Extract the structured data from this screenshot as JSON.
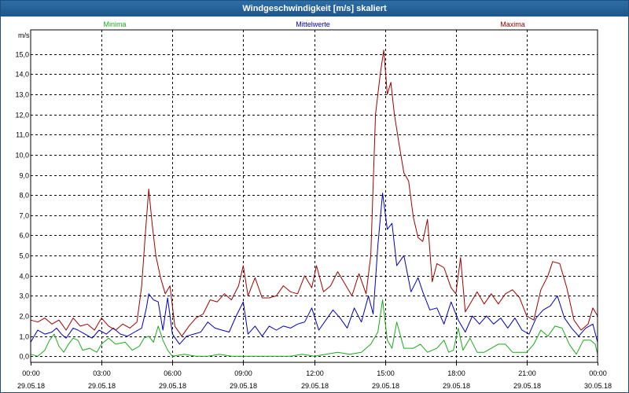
{
  "window": {
    "title": "Windgeschwindigkeit [m/s] skaliert"
  },
  "colors": {
    "min": "#1aaa1a",
    "mean": "#0000c0",
    "max": "#a00000",
    "grid": "#000000"
  },
  "chart_data": {
    "type": "line",
    "title": "Windgeschwindigkeit [m/s] skaliert",
    "ylabel": "m/s",
    "ylim": [
      -0.3,
      16.2
    ],
    "yticks": [
      0,
      1,
      2,
      3,
      4,
      5,
      6,
      7,
      8,
      9,
      10,
      11,
      12,
      13,
      14,
      15
    ],
    "ytick_labels": [
      "0,0",
      "1,0",
      "2,0",
      "3,0",
      "4,0",
      "5,0",
      "6,0",
      "7,0",
      "8,0",
      "9,0",
      "10,0",
      "11,0",
      "12,0",
      "13,0",
      "14,0",
      "15,0"
    ],
    "xlim": [
      0,
      24
    ],
    "x_ticks": [
      {
        "hour": 0,
        "time": "00:00",
        "date": "29.05.18"
      },
      {
        "hour": 3,
        "time": "03:00",
        "date": "29.05.18"
      },
      {
        "hour": 6,
        "time": "06:00",
        "date": "29.05.18"
      },
      {
        "hour": 9,
        "time": "09:00",
        "date": "29.05.18"
      },
      {
        "hour": 12,
        "time": "12:00",
        "date": "29.05.18"
      },
      {
        "hour": 15,
        "time": "15:00",
        "date": "29.05.18"
      },
      {
        "hour": 18,
        "time": "18:00",
        "date": "29.05.18"
      },
      {
        "hour": 21,
        "time": "21:00",
        "date": "29.05.18"
      },
      {
        "hour": 24,
        "time": "00:00",
        "date": "30.05.18"
      }
    ],
    "legend": [
      "Minima",
      "Mittelwerte",
      "Maxima"
    ],
    "grid": true,
    "series": [
      {
        "name": "Minima",
        "color": "#1aaa1a",
        "points": [
          [
            0,
            0.1
          ],
          [
            0.3,
            0
          ],
          [
            0.6,
            0.3
          ],
          [
            0.8,
            0.8
          ],
          [
            1.0,
            1.1
          ],
          [
            1.2,
            0.5
          ],
          [
            1.4,
            0.2
          ],
          [
            1.6,
            0.6
          ],
          [
            1.8,
            0.9
          ],
          [
            2.0,
            0.8
          ],
          [
            2.2,
            0.3
          ],
          [
            2.5,
            0.4
          ],
          [
            2.8,
            0.2
          ],
          [
            3.0,
            0.6
          ],
          [
            3.3,
            0.9
          ],
          [
            3.6,
            0.6
          ],
          [
            4.0,
            0.7
          ],
          [
            4.3,
            0.3
          ],
          [
            4.6,
            0.5
          ],
          [
            4.8,
            0.9
          ],
          [
            5.0,
            1.0
          ],
          [
            5.2,
            0.7
          ],
          [
            5.4,
            1.5
          ],
          [
            5.6,
            0.8
          ],
          [
            5.8,
            0.3
          ],
          [
            6.0,
            0
          ],
          [
            6.5,
            0.1
          ],
          [
            7.0,
            0
          ],
          [
            7.5,
            0
          ],
          [
            8.0,
            0.1
          ],
          [
            8.5,
            0
          ],
          [
            9.0,
            0
          ],
          [
            9.5,
            0
          ],
          [
            10.0,
            0
          ],
          [
            10.5,
            0
          ],
          [
            11.0,
            0
          ],
          [
            11.5,
            0.1
          ],
          [
            12.0,
            0
          ],
          [
            12.5,
            0.1
          ],
          [
            13.0,
            0.2
          ],
          [
            13.5,
            0.1
          ],
          [
            14.0,
            0.2
          ],
          [
            14.4,
            0.6
          ],
          [
            14.7,
            1.2
          ],
          [
            14.9,
            2.8
          ],
          [
            15.1,
            0.8
          ],
          [
            15.3,
            0.4
          ],
          [
            15.5,
            1.7
          ],
          [
            15.8,
            0.4
          ],
          [
            16.2,
            0.4
          ],
          [
            16.5,
            0.6
          ],
          [
            16.8,
            0.2
          ],
          [
            17.2,
            0.4
          ],
          [
            17.5,
            0.8
          ],
          [
            17.7,
            0.2
          ],
          [
            17.9,
            0.3
          ],
          [
            18.1,
            1.4
          ],
          [
            18.3,
            0.3
          ],
          [
            18.6,
            0.9
          ],
          [
            18.9,
            0.2
          ],
          [
            19.2,
            0.2
          ],
          [
            19.5,
            0.4
          ],
          [
            19.8,
            0.6
          ],
          [
            20.1,
            0.6
          ],
          [
            20.4,
            0.2
          ],
          [
            20.7,
            0.2
          ],
          [
            21.0,
            0.2
          ],
          [
            21.3,
            0.6
          ],
          [
            21.6,
            1.3
          ],
          [
            21.9,
            1.0
          ],
          [
            22.2,
            1.5
          ],
          [
            22.5,
            1.4
          ],
          [
            22.8,
            0.6
          ],
          [
            23.1,
            0.1
          ],
          [
            23.4,
            0.8
          ],
          [
            23.7,
            0.8
          ],
          [
            23.9,
            0.6
          ],
          [
            24.0,
            0.1
          ]
        ]
      },
      {
        "name": "Mittelwerte",
        "color": "#0000c0",
        "points": [
          [
            0,
            0.7
          ],
          [
            0.3,
            1.3
          ],
          [
            0.6,
            1.1
          ],
          [
            0.9,
            1.2
          ],
          [
            1.1,
            1.4
          ],
          [
            1.3,
            1.1
          ],
          [
            1.5,
            0.9
          ],
          [
            1.8,
            1.4
          ],
          [
            2.0,
            1.3
          ],
          [
            2.3,
            1.1
          ],
          [
            2.6,
            0.9
          ],
          [
            2.9,
            1.3
          ],
          [
            3.2,
            1.1
          ],
          [
            3.5,
            1.4
          ],
          [
            3.8,
            1.1
          ],
          [
            4.1,
            1.0
          ],
          [
            4.4,
            1.2
          ],
          [
            4.7,
            1.4
          ],
          [
            4.9,
            2.4
          ],
          [
            5.0,
            3.1
          ],
          [
            5.2,
            2.8
          ],
          [
            5.4,
            2.7
          ],
          [
            5.6,
            1.3
          ],
          [
            5.8,
            2.9
          ],
          [
            6.0,
            1.1
          ],
          [
            6.3,
            0.6
          ],
          [
            6.6,
            1.0
          ],
          [
            6.9,
            1.1
          ],
          [
            7.2,
            1.2
          ],
          [
            7.5,
            1.7
          ],
          [
            7.8,
            1.4
          ],
          [
            8.1,
            1.3
          ],
          [
            8.4,
            1.2
          ],
          [
            8.7,
            2.0
          ],
          [
            9.0,
            2.7
          ],
          [
            9.2,
            1.1
          ],
          [
            9.5,
            1.5
          ],
          [
            9.8,
            1.0
          ],
          [
            10.1,
            1.5
          ],
          [
            10.4,
            1.3
          ],
          [
            10.7,
            1.5
          ],
          [
            11.0,
            1.4
          ],
          [
            11.3,
            1.6
          ],
          [
            11.6,
            1.7
          ],
          [
            11.9,
            2.4
          ],
          [
            12.2,
            1.3
          ],
          [
            12.5,
            1.8
          ],
          [
            12.8,
            2.3
          ],
          [
            13.1,
            1.9
          ],
          [
            13.4,
            1.4
          ],
          [
            13.7,
            2.4
          ],
          [
            14.0,
            1.7
          ],
          [
            14.3,
            3.0
          ],
          [
            14.5,
            2.1
          ],
          [
            14.7,
            5.5
          ],
          [
            14.9,
            8.1
          ],
          [
            15.1,
            6.3
          ],
          [
            15.3,
            6.6
          ],
          [
            15.5,
            4.5
          ],
          [
            15.8,
            5.0
          ],
          [
            16.1,
            3.2
          ],
          [
            16.4,
            3.9
          ],
          [
            16.6,
            3.2
          ],
          [
            16.9,
            2.3
          ],
          [
            17.2,
            2.4
          ],
          [
            17.5,
            1.6
          ],
          [
            17.8,
            2.7
          ],
          [
            18.1,
            1.8
          ],
          [
            18.4,
            1.2
          ],
          [
            18.7,
            2.0
          ],
          [
            19.0,
            1.6
          ],
          [
            19.3,
            2.0
          ],
          [
            19.6,
            1.6
          ],
          [
            19.9,
            1.9
          ],
          [
            20.2,
            1.4
          ],
          [
            20.5,
            1.9
          ],
          [
            20.8,
            1.3
          ],
          [
            21.1,
            1.1
          ],
          [
            21.4,
            1.9
          ],
          [
            21.7,
            2.3
          ],
          [
            22.0,
            2.5
          ],
          [
            22.3,
            3.0
          ],
          [
            22.6,
            1.9
          ],
          [
            22.9,
            1.4
          ],
          [
            23.2,
            1.0
          ],
          [
            23.5,
            1.4
          ],
          [
            23.8,
            1.6
          ],
          [
            24.0,
            0.7
          ]
        ]
      },
      {
        "name": "Maxima",
        "color": "#a00000",
        "points": [
          [
            0,
            1.8
          ],
          [
            0.3,
            1.7
          ],
          [
            0.6,
            1.9
          ],
          [
            0.9,
            1.6
          ],
          [
            1.2,
            1.8
          ],
          [
            1.5,
            1.3
          ],
          [
            1.8,
            1.9
          ],
          [
            2.1,
            1.5
          ],
          [
            2.4,
            1.6
          ],
          [
            2.7,
            1.3
          ],
          [
            3.0,
            1.9
          ],
          [
            3.3,
            1.5
          ],
          [
            3.6,
            1.3
          ],
          [
            3.9,
            1.6
          ],
          [
            4.2,
            1.4
          ],
          [
            4.5,
            1.7
          ],
          [
            4.7,
            3.5
          ],
          [
            4.85,
            6.0
          ],
          [
            5.0,
            8.3
          ],
          [
            5.15,
            6.5
          ],
          [
            5.3,
            5.0
          ],
          [
            5.5,
            3.9
          ],
          [
            5.7,
            3.1
          ],
          [
            5.9,
            3.5
          ],
          [
            6.1,
            1.5
          ],
          [
            6.4,
            1.0
          ],
          [
            6.7,
            1.5
          ],
          [
            7.0,
            1.9
          ],
          [
            7.3,
            2.1
          ],
          [
            7.6,
            2.8
          ],
          [
            7.9,
            2.7
          ],
          [
            8.2,
            3.1
          ],
          [
            8.5,
            2.8
          ],
          [
            8.8,
            3.5
          ],
          [
            9.0,
            4.5
          ],
          [
            9.2,
            3.0
          ],
          [
            9.5,
            3.9
          ],
          [
            9.8,
            2.9
          ],
          [
            10.1,
            2.9
          ],
          [
            10.4,
            3.0
          ],
          [
            10.7,
            3.5
          ],
          [
            11.0,
            3.2
          ],
          [
            11.3,
            3.1
          ],
          [
            11.6,
            4.0
          ],
          [
            11.9,
            3.4
          ],
          [
            12.1,
            4.5
          ],
          [
            12.4,
            3.2
          ],
          [
            12.7,
            3.5
          ],
          [
            13.0,
            4.2
          ],
          [
            13.3,
            3.6
          ],
          [
            13.6,
            3.0
          ],
          [
            13.9,
            4.1
          ],
          [
            14.2,
            3.1
          ],
          [
            14.4,
            5.0
          ],
          [
            14.6,
            12.0
          ],
          [
            14.8,
            14.0
          ],
          [
            14.95,
            15.2
          ],
          [
            15.1,
            13.0
          ],
          [
            15.25,
            13.6
          ],
          [
            15.4,
            12.0
          ],
          [
            15.6,
            10.5
          ],
          [
            15.8,
            9.1
          ],
          [
            16.0,
            8.7
          ],
          [
            16.2,
            6.9
          ],
          [
            16.4,
            5.9
          ],
          [
            16.6,
            5.7
          ],
          [
            16.8,
            6.8
          ],
          [
            17.0,
            3.7
          ],
          [
            17.2,
            4.6
          ],
          [
            17.5,
            4.4
          ],
          [
            17.8,
            3.4
          ],
          [
            18.0,
            3.1
          ],
          [
            18.2,
            4.9
          ],
          [
            18.4,
            2.2
          ],
          [
            18.6,
            2.6
          ],
          [
            18.9,
            3.2
          ],
          [
            19.2,
            2.6
          ],
          [
            19.5,
            3.1
          ],
          [
            19.8,
            2.6
          ],
          [
            20.1,
            3.1
          ],
          [
            20.4,
            3.3
          ],
          [
            20.7,
            2.9
          ],
          [
            21.0,
            2.0
          ],
          [
            21.3,
            1.8
          ],
          [
            21.6,
            3.3
          ],
          [
            21.9,
            4.0
          ],
          [
            22.1,
            4.7
          ],
          [
            22.4,
            4.6
          ],
          [
            22.7,
            3.4
          ],
          [
            23.0,
            1.8
          ],
          [
            23.3,
            1.3
          ],
          [
            23.6,
            1.6
          ],
          [
            23.8,
            2.4
          ],
          [
            24.0,
            2.0
          ]
        ]
      }
    ]
  }
}
